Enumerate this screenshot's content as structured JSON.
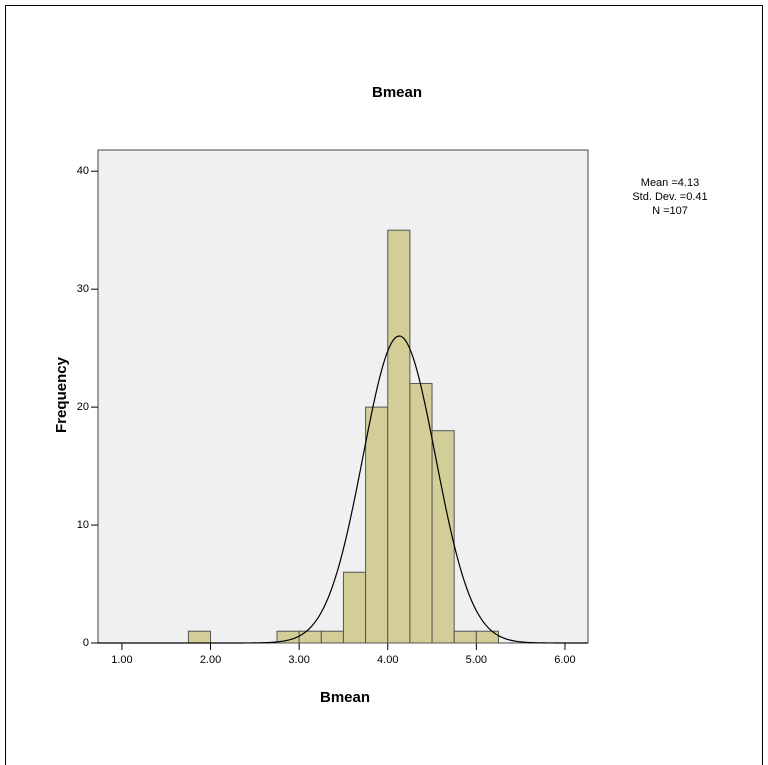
{
  "chart_data": {
    "type": "histogram",
    "title": "Bmean",
    "x_label": "Bmean",
    "y_label": "Frequency",
    "bins": [
      1.75,
      2.0,
      2.25,
      2.5,
      2.75,
      3.0,
      3.25,
      3.5,
      3.75,
      4.0,
      4.25,
      4.5,
      4.75,
      5.0,
      5.25
    ],
    "values": [
      1,
      0,
      0,
      0,
      1,
      1,
      1,
      6,
      20,
      35,
      22,
      18,
      1,
      1
    ],
    "color": "#d3cd97",
    "background": "#f0f0f0",
    "xlim": [
      0.73,
      6.26
    ],
    "ylim": [
      0,
      41.8
    ],
    "xticks": [
      {
        "value": 1,
        "label": "1.00"
      },
      {
        "value": 2,
        "label": "2.00"
      },
      {
        "value": 3,
        "label": "3.00"
      },
      {
        "value": 4,
        "label": "4.00"
      },
      {
        "value": 5,
        "label": "5.00"
      },
      {
        "value": 6,
        "label": "6.00"
      }
    ],
    "yticks": [
      0,
      10,
      20,
      30,
      40
    ],
    "normal_curve": true,
    "stats": [
      {
        "label": "Mean =",
        "value": 4.13
      },
      {
        "label": "Std. Dev. =",
        "value": 0.41
      },
      {
        "label": "N =",
        "value": 107
      }
    ]
  }
}
